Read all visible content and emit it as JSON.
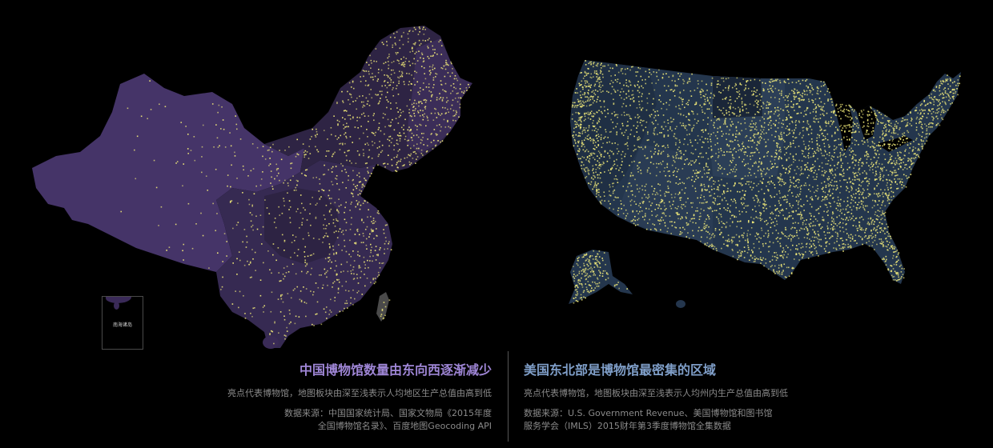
{
  "colors": {
    "background": "#000000",
    "china_region_dark": "#2b2140",
    "china_region_mid": "#3a2b57",
    "china_region_light": "#4a3870",
    "usa_region_dark": "#1c2a3e",
    "usa_region_mid": "#24364d",
    "usa_region_light": "#30445c",
    "museum_dot": "#f3ec7a",
    "china_title": "#9f86d6",
    "usa_title": "#7f9ec8",
    "caption_text": "#8a8a8a",
    "taiwan": "#4a4a4a"
  },
  "china": {
    "title": "中国博物馆数量由东向西逐渐减少",
    "description": "亮点代表博物馆，地图板块由深至浅表示人均地区生产总值由高到低",
    "source_line1": "数据来源：中国国家统计局、国家文物局《2015年度",
    "source_line2": "全国博物馆名录》、百度地图Geocoding API",
    "inset_label": "南海诸岛"
  },
  "usa": {
    "title": "美国东北部是博物馆最密集的区域",
    "description": "亮点代表博物馆，地图板块由深至浅表示人均州内生产总值由高到低",
    "source_line1": "数据来源：U.S. Government Revenue、美国博物馆和图书馆",
    "source_line2": "服务学会（IMLS）2015财年第3季度博物馆全集数据"
  }
}
